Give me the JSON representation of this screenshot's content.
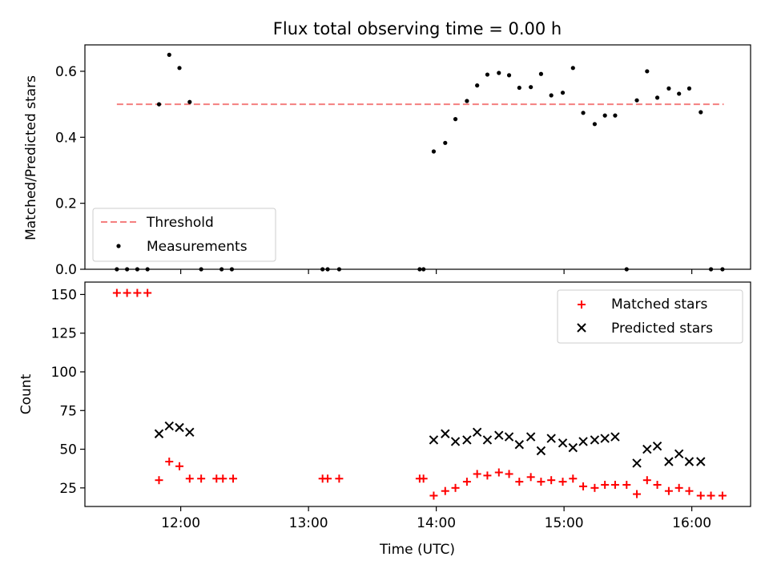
{
  "chart_data": [
    {
      "type": "scatter",
      "title": "Flux total observing time = 0.00 h",
      "ylabel": "Matched/Predicted stars",
      "xlabel": "",
      "ylim": [
        0,
        0.68
      ],
      "yticks": [
        0.0,
        0.2,
        0.4,
        0.6
      ],
      "ytick_labels": [
        "0.0",
        "0.2",
        "0.4",
        "0.6"
      ],
      "xlim_hours": [
        11.25,
        16.46
      ],
      "legend_position": "lower-left",
      "grid": false,
      "series": [
        {
          "name": "Threshold",
          "kind": "dashed-line",
          "color": "#f47f7f",
          "x": [
            11.5,
            16.25
          ],
          "y": [
            0.5,
            0.5
          ]
        },
        {
          "name": "Measurements",
          "kind": "dot",
          "color": "#000000",
          "x": [
            11.5,
            11.58,
            11.66,
            11.74,
            11.83,
            11.91,
            11.99,
            12.07,
            12.16,
            12.32,
            12.4,
            13.11,
            13.15,
            13.24,
            13.87,
            13.9,
            13.98,
            14.07,
            14.15,
            14.24,
            14.32,
            14.4,
            14.49,
            14.57,
            14.65,
            14.74,
            14.82,
            14.9,
            14.99,
            15.07,
            15.15,
            15.24,
            15.32,
            15.4,
            15.49,
            15.57,
            15.65,
            15.73,
            15.82,
            15.9,
            15.98,
            16.07,
            16.15,
            16.24
          ],
          "y": [
            0,
            0,
            0,
            0,
            0.5,
            0.65,
            0.61,
            0.507,
            0,
            0,
            0,
            0,
            0,
            0,
            0,
            0,
            0.357,
            0.383,
            0.455,
            0.51,
            0.557,
            0.59,
            0.595,
            0.588,
            0.55,
            0.552,
            0.592,
            0.527,
            0.535,
            0.61,
            0.474,
            0.44,
            0.466,
            0.466,
            0,
            0.512,
            0.6,
            0.52,
            0.548,
            0.532,
            0.548,
            0.476,
            0,
            0
          ]
        }
      ]
    },
    {
      "type": "scatter",
      "title": "",
      "ylabel": "Count",
      "xlabel": "Time (UTC)",
      "ylim": [
        13,
        158
      ],
      "yticks": [
        25,
        50,
        75,
        100,
        125,
        150
      ],
      "ytick_labels": [
        "25",
        "50",
        "75",
        "100",
        "125",
        "150"
      ],
      "xlim_hours": [
        11.25,
        16.46
      ],
      "xticks_hours": [
        12,
        13,
        14,
        15,
        16
      ],
      "xtick_labels": [
        "12:00",
        "13:00",
        "14:00",
        "15:00",
        "16:00"
      ],
      "legend_position": "top-right",
      "grid": false,
      "series": [
        {
          "name": "Matched stars",
          "kind": "plus",
          "color": "#ff0000",
          "x": [
            11.5,
            11.58,
            11.66,
            11.74,
            11.83,
            11.91,
            11.99,
            12.07,
            12.16,
            12.28,
            12.33,
            12.41,
            13.11,
            13.15,
            13.24,
            13.87,
            13.9,
            13.98,
            14.07,
            14.15,
            14.24,
            14.32,
            14.4,
            14.49,
            14.57,
            14.65,
            14.74,
            14.82,
            14.9,
            14.99,
            15.07,
            15.15,
            15.24,
            15.32,
            15.4,
            15.49,
            15.57,
            15.65,
            15.73,
            15.82,
            15.9,
            15.98,
            16.07,
            16.15,
            16.24
          ],
          "y": [
            151,
            151,
            151,
            151,
            30,
            42,
            39,
            31,
            31,
            31,
            31,
            31,
            31,
            31,
            31,
            31,
            31,
            20,
            23,
            25,
            29,
            34,
            33,
            35,
            34,
            29,
            32,
            29,
            30,
            29,
            31,
            26,
            25,
            27,
            27,
            27,
            21,
            30,
            27,
            23,
            25,
            23,
            20,
            20,
            20
          ]
        },
        {
          "name": "Predicted stars",
          "kind": "x",
          "color": "#000000",
          "x": [
            11.83,
            11.91,
            11.99,
            12.07,
            13.98,
            14.07,
            14.15,
            14.24,
            14.32,
            14.4,
            14.49,
            14.57,
            14.65,
            14.74,
            14.82,
            14.9,
            14.99,
            15.07,
            15.15,
            15.24,
            15.32,
            15.4,
            15.57,
            15.65,
            15.73,
            15.82,
            15.9,
            15.98,
            16.07
          ],
          "y": [
            60,
            65,
            64,
            61,
            56,
            60,
            55,
            56,
            61,
            56,
            59,
            58,
            53,
            58,
            49,
            57,
            54,
            51,
            55,
            56,
            57,
            58,
            41,
            50,
            52,
            42,
            47,
            42,
            42
          ]
        }
      ]
    }
  ]
}
